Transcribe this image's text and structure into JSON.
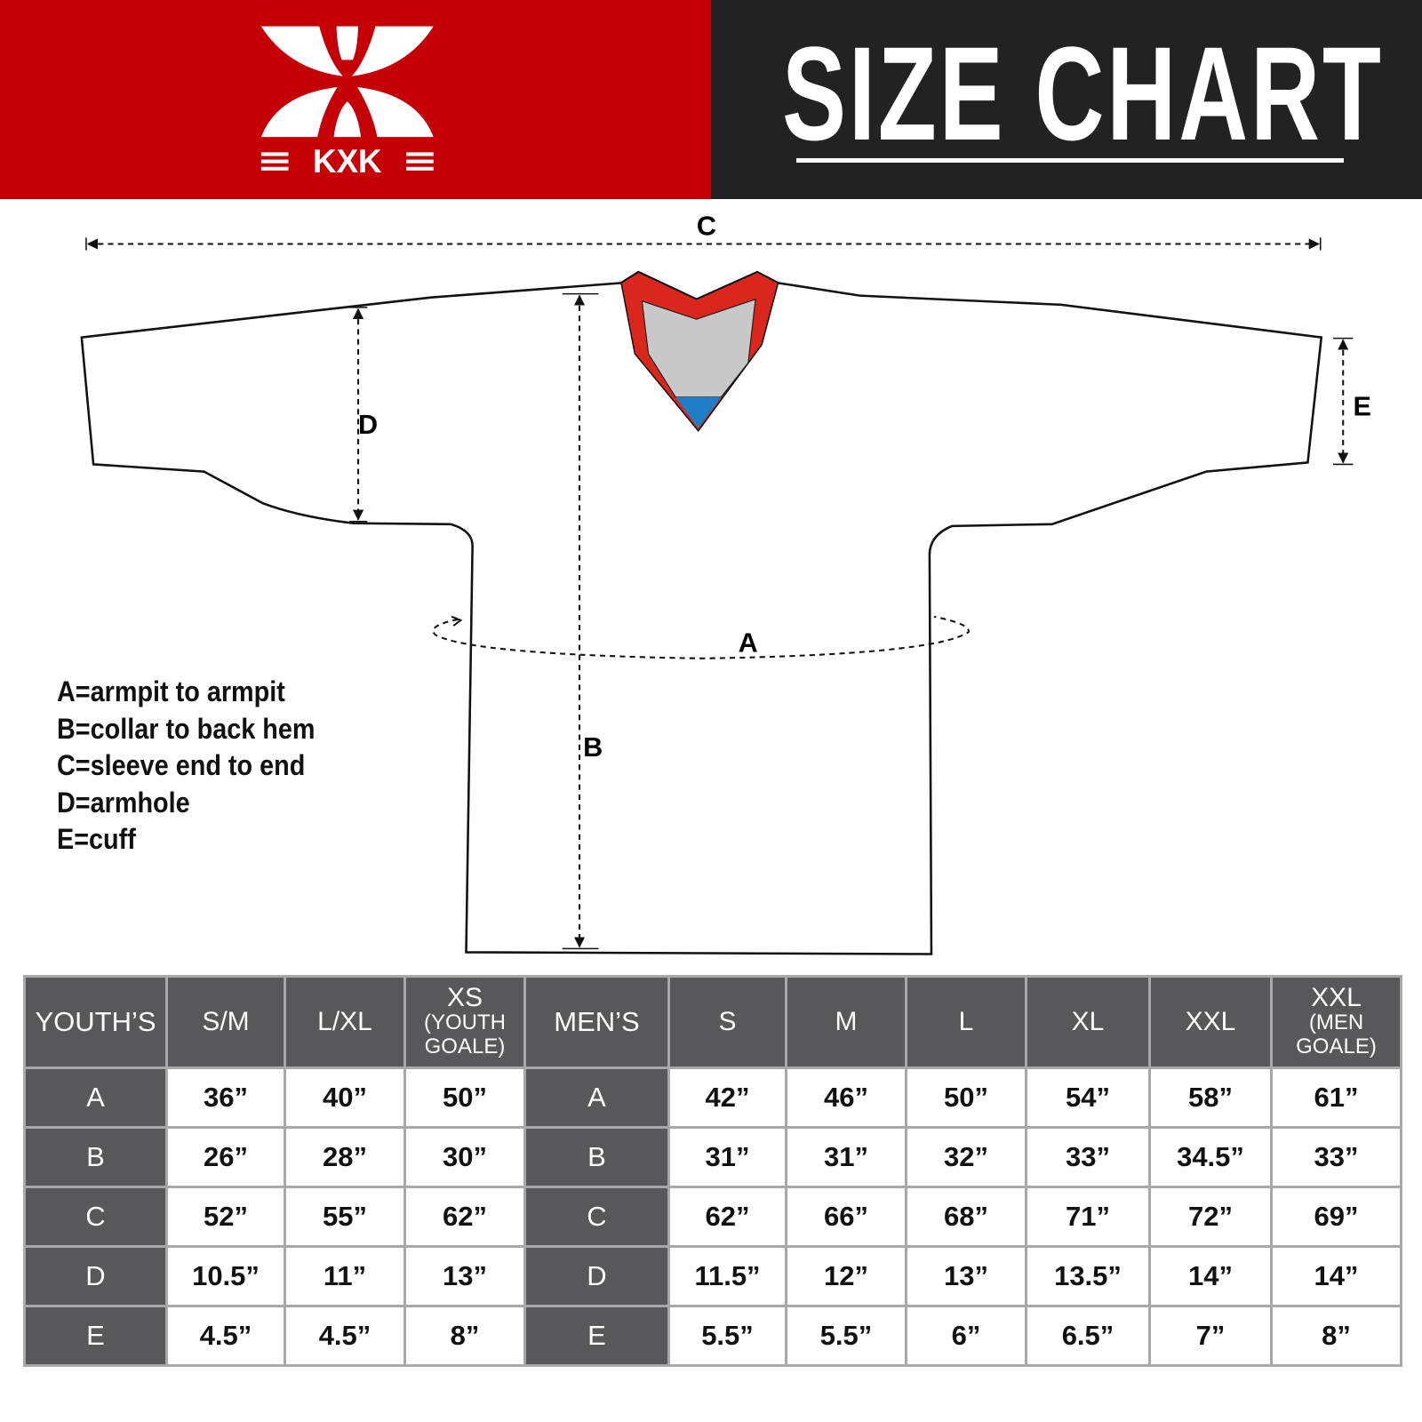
{
  "header": {
    "brand": "KXK",
    "title": "SIZE CHART",
    "brand_color": "#c40006",
    "dark_color": "#222222"
  },
  "diagram": {
    "labels": {
      "A": "A",
      "B": "B",
      "C": "C",
      "D": "D",
      "E": "E"
    },
    "collar_colors": {
      "trim": "#d9271e",
      "inner": "#c8c8c8",
      "tag": "#1e7fc6"
    }
  },
  "legend": [
    "A=armpit to armpit",
    "B=collar to back hem",
    "C=sleeve end to end",
    "D=armhole",
    "E=cuff"
  ],
  "table": {
    "youth_header": "YOUTH’S",
    "youth_sizes": [
      {
        "main": "S/M",
        "sub": ""
      },
      {
        "main": "L/XL",
        "sub": ""
      },
      {
        "main": "XS",
        "sub": "(YOUTH GOALE)"
      }
    ],
    "men_header": "MEN’S",
    "men_sizes": [
      {
        "main": "S",
        "sub": ""
      },
      {
        "main": "M",
        "sub": ""
      },
      {
        "main": "L",
        "sub": ""
      },
      {
        "main": "XL",
        "sub": ""
      },
      {
        "main": "XXL",
        "sub": ""
      },
      {
        "main": "XXL",
        "sub": "(MEN GOALE)"
      }
    ],
    "rows": [
      {
        "label": "A",
        "youth": [
          "36”",
          "40”",
          "50”"
        ],
        "men": [
          "42”",
          "46”",
          "50”",
          "54”",
          "58”",
          "61”"
        ]
      },
      {
        "label": "B",
        "youth": [
          "26”",
          "28”",
          "30”"
        ],
        "men": [
          "31”",
          "31”",
          "32”",
          "33”",
          "34.5”",
          "33”"
        ]
      },
      {
        "label": "C",
        "youth": [
          "52”",
          "55”",
          "62”"
        ],
        "men": [
          "62”",
          "66”",
          "68”",
          "71”",
          "72”",
          "69”"
        ]
      },
      {
        "label": "D",
        "youth": [
          "10.5”",
          "11”",
          "13”"
        ],
        "men": [
          "11.5”",
          "12”",
          "13”",
          "13.5”",
          "14”",
          "14”"
        ]
      },
      {
        "label": "E",
        "youth": [
          "4.5”",
          "4.5”",
          "8”"
        ],
        "men": [
          "5.5”",
          "5.5”",
          "6”",
          "6.5”",
          "7”",
          "8”"
        ]
      }
    ]
  }
}
